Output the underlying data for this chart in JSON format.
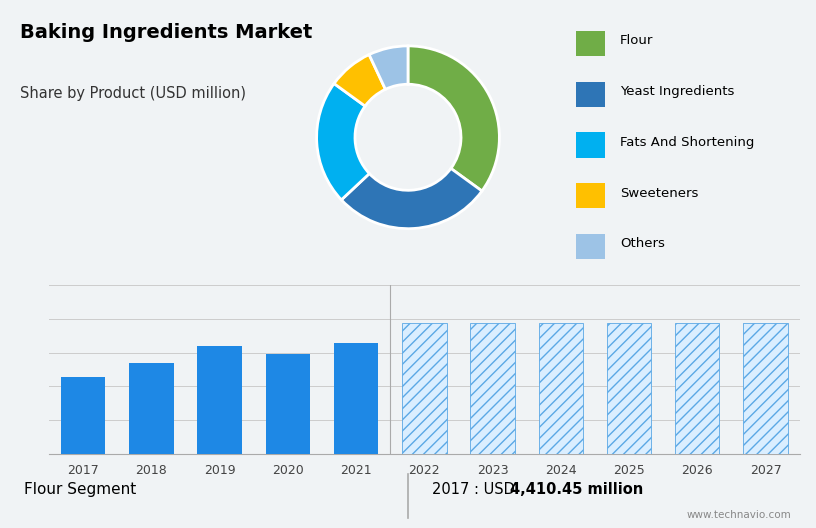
{
  "title": "Baking Ingredients Market",
  "subtitle": "Share by Product (USD million)",
  "pie_labels": [
    "Flour",
    "Yeast Ingredients",
    "Fats And Shortening",
    "Sweeteners",
    "Others"
  ],
  "pie_values": [
    35,
    28,
    22,
    8,
    7
  ],
  "pie_colors": [
    "#70AD47",
    "#2E75B6",
    "#00B0F0",
    "#FFC000",
    "#9DC3E6"
  ],
  "bar_years": [
    2017,
    2018,
    2019,
    2020,
    2021,
    2022,
    2023,
    2024,
    2025,
    2026,
    2027
  ],
  "bar_values_solid": [
    4410,
    4580,
    4780,
    4680,
    4820
  ],
  "bar_values_hatched": [
    5050,
    5050,
    5050,
    5050,
    5050,
    5050
  ],
  "bar_color_solid": "#1E88E5",
  "bar_hatch": "///",
  "footer_left": "Flour Segment",
  "footer_right_plain": "2017 : USD ",
  "footer_right_bold": "4,410.45 million",
  "watermark": "www.technavio.com",
  "top_bg_color": "#C9D6DF",
  "bottom_bg_color": "#F0F3F5",
  "footer_bg_color": "#E8ECF0",
  "title_fontsize": 14,
  "subtitle_fontsize": 10.5,
  "ymin": 3500,
  "ymax": 5500,
  "grid_lines_y": [
    3500,
    3900,
    4300,
    4700,
    5100,
    5500
  ]
}
